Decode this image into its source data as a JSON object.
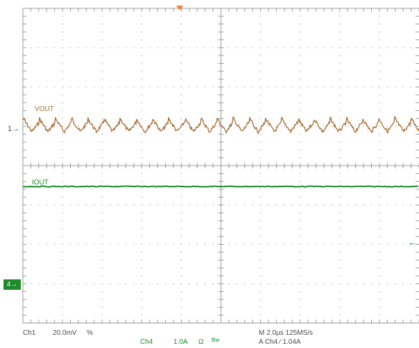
{
  "scope": {
    "background": "#ffffff",
    "grid_color": "#9a9a9a",
    "dot_color": "#b4b4b4",
    "divisions": {
      "horizontal": 10,
      "vertical": 8
    },
    "trigger_position_marker": "trigger-position-triangle",
    "trigger_marker_color": "#ff7f2a"
  },
  "channels": [
    {
      "id": "ch1",
      "marker": "1",
      "label": "VOUT",
      "color": "#a86a2f",
      "scale": "20.0mV",
      "coupling_symbol": "%",
      "waveform": "ripple"
    },
    {
      "id": "ch4",
      "marker": "4",
      "label": "IOUT",
      "color": "#1f8a2a",
      "scale": "1.0A",
      "impedance_symbol": "Ω",
      "bandwidth_symbol": "Bw",
      "name": "Ch4",
      "waveform": "flat"
    }
  ],
  "status": {
    "ch1_name": "Ch1",
    "ch1_scale": "20.0mV",
    "ch1_coupling": "%",
    "ch4_name": "Ch4",
    "ch4_scale": "1.0A",
    "ch4_impedance": "Ω",
    "ch4_bw": "Bw",
    "timebase": "M 2.0µs 125MS/s",
    "trigger": "A  Ch4  ⁄  1.04A"
  },
  "trigger_level_arrow": "trigger-level-arrow"
}
